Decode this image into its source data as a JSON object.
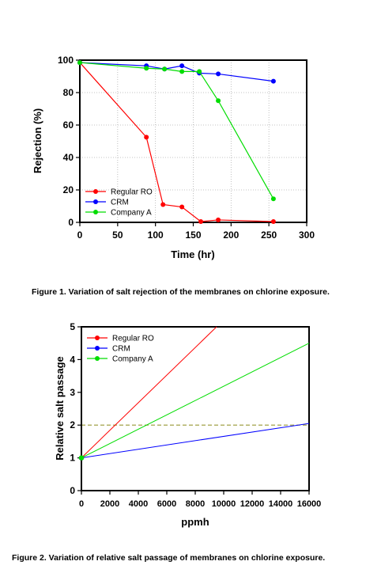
{
  "chart_data": [
    {
      "type": "line",
      "xlabel": "Time (hr)",
      "ylabel": "Rejection (%)",
      "xlim": [
        0,
        300
      ],
      "ylim": [
        0,
        100
      ],
      "xticks": [
        "0",
        "50",
        "100",
        "150",
        "200",
        "250",
        "300"
      ],
      "yticks": [
        "0",
        "20",
        "40",
        "60",
        "80",
        "100"
      ],
      "grid": true,
      "legend_position": "bottom-left",
      "series": [
        {
          "name": "Regular RO",
          "color": "#ff0000",
          "x": [
            0,
            88,
            110,
            135,
            160,
            183,
            256
          ],
          "y": [
            98.5,
            52.5,
            11,
            9.5,
            0.5,
            1.5,
            0.5
          ]
        },
        {
          "name": "CRM",
          "color": "#0000ff",
          "x": [
            0,
            88,
            112,
            135,
            158,
            183,
            256
          ],
          "y": [
            98.5,
            96.5,
            94.5,
            96.5,
            92,
            91.5,
            87
          ]
        },
        {
          "name": "Company A",
          "color": "#00dd00",
          "x": [
            0,
            88,
            112,
            135,
            158,
            183,
            256
          ],
          "y": [
            98.5,
            95,
            94.5,
            93,
            93,
            75,
            14.5
          ]
        }
      ],
      "caption": "Figure 1. Variation of salt rejection of the membranes on chlorine exposure."
    },
    {
      "type": "line",
      "xlabel": "ppmh",
      "ylabel": "Relative salt passage",
      "xlim": [
        0,
        16000
      ],
      "ylim": [
        0,
        5
      ],
      "xticks": [
        "0",
        "2000",
        "4000",
        "6000",
        "8000",
        "10000",
        "12000",
        "14000",
        "16000"
      ],
      "yticks": [
        "0",
        "1",
        "2",
        "3",
        "4",
        "5"
      ],
      "grid": false,
      "legend_position": "top-left",
      "reference_line": {
        "y": 2,
        "style": "dashed",
        "color": "#999933"
      },
      "series": [
        {
          "name": "Regular RO",
          "color": "#ff0000",
          "x": [
            0,
            9500
          ],
          "y": [
            1,
            5
          ]
        },
        {
          "name": "CRM",
          "color": "#0000ff",
          "x": [
            0,
            16000
          ],
          "y": [
            1,
            2.05
          ]
        },
        {
          "name": "Company A",
          "color": "#00dd00",
          "x": [
            0,
            16000
          ],
          "y": [
            1,
            4.5
          ]
        }
      ],
      "caption": "Figure 2. Variation of relative salt passage of membranes on chlorine exposure."
    }
  ]
}
